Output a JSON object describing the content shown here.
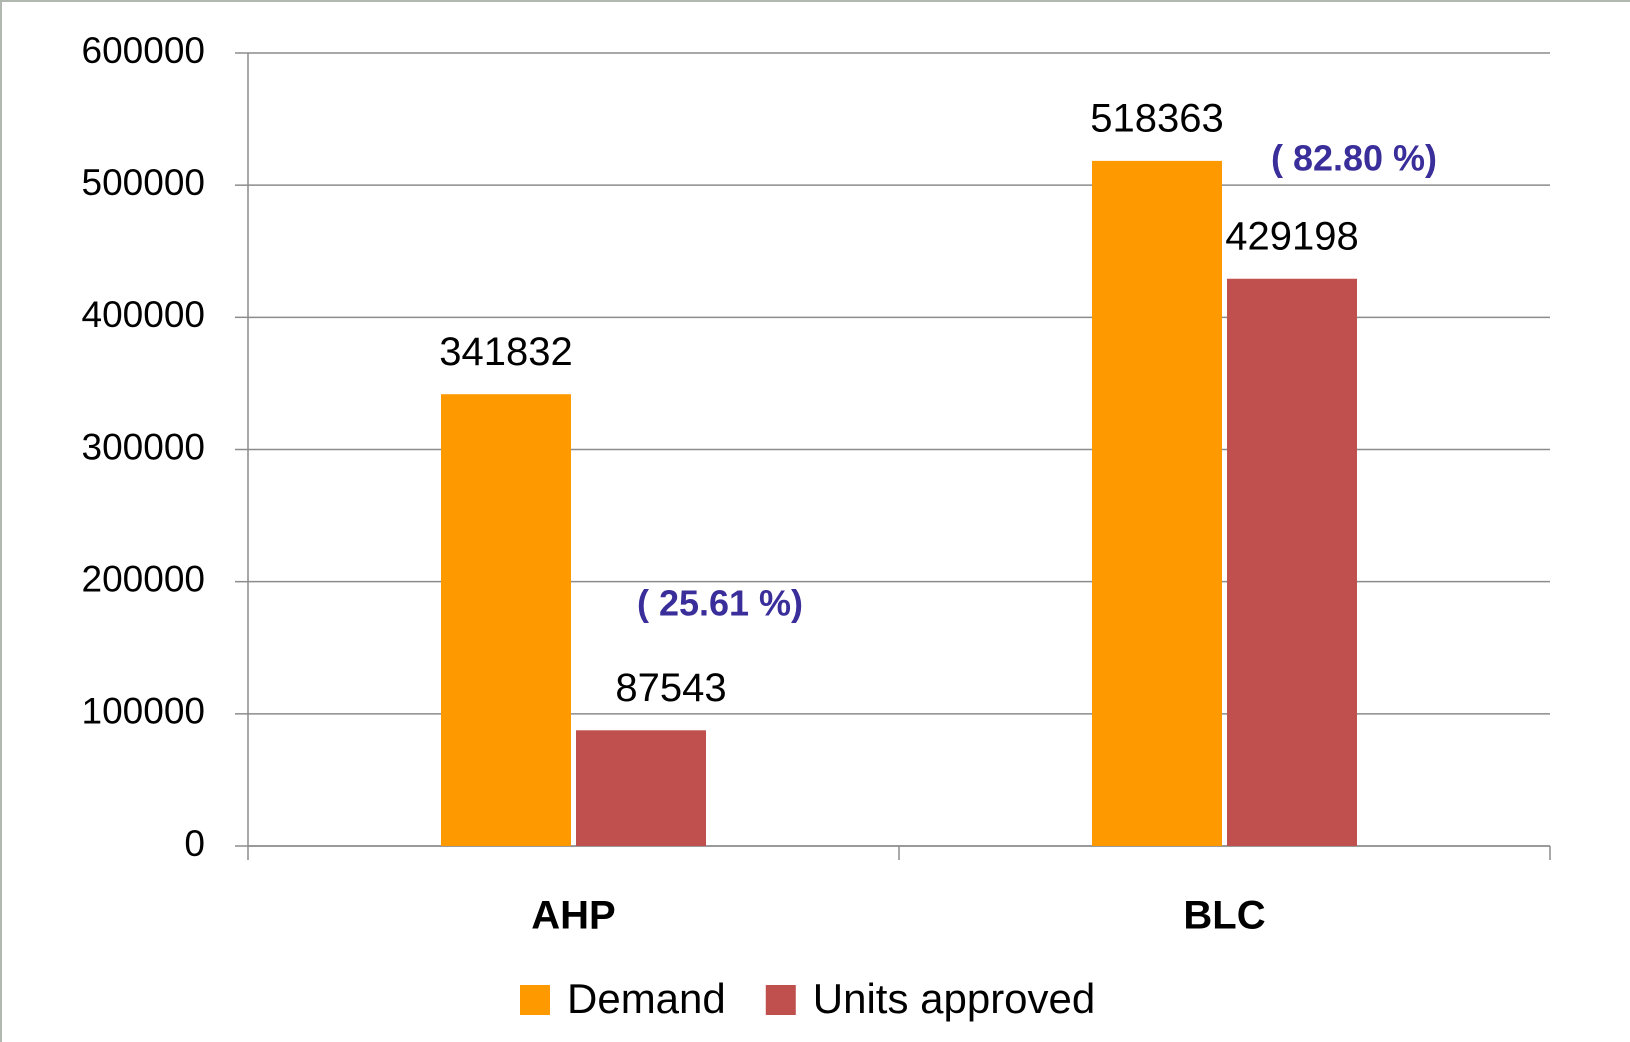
{
  "chart_data": {
    "type": "bar",
    "categories": [
      "AHP",
      "BLC"
    ],
    "series": [
      {
        "name": "Demand",
        "color": "#ff9900",
        "values": [
          341832,
          518363
        ]
      },
      {
        "name": "Units approved",
        "color": "#c0504d",
        "values": [
          87543,
          429198
        ]
      }
    ],
    "ylim": [
      0,
      600000
    ],
    "yticks": [
      0,
      100000,
      200000,
      300000,
      400000,
      500000,
      600000
    ],
    "grid": true,
    "legend": "bottom",
    "annotations": [
      "( 25.61 %)",
      "( 82.80 %)"
    ]
  }
}
